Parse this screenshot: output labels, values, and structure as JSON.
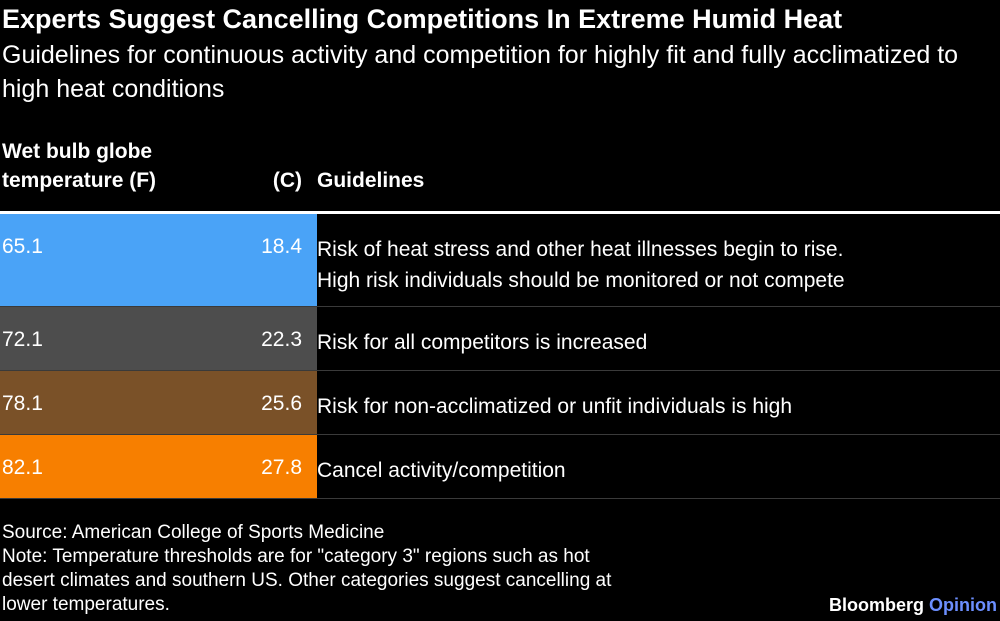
{
  "title": "Experts Suggest Cancelling Competitions In Extreme Humid Heat",
  "subtitle": "Guidelines for continuous activity and competition for highly fit and fully acclimatized to high heat conditions",
  "headers": {
    "fahrenheit_line1": "Wet bulb globe",
    "fahrenheit_line2": "temperature (F)",
    "celsius": "(C)",
    "guidelines": "Guidelines"
  },
  "chart_data": {
    "type": "table",
    "columns": [
      "Wet bulb globe temperature (F)",
      "(C)",
      "Guidelines"
    ],
    "rows": [
      {
        "fahrenheit": "65.1",
        "celsius": "18.4",
        "color": "#4aa3f7",
        "guideline_lines": [
          "Risk of heat stress and other heat illnesses begin to rise.",
          "High risk individuals should be monitored or not compete"
        ]
      },
      {
        "fahrenheit": "72.1",
        "celsius": "22.3",
        "color": "#4d4d4d",
        "guideline_lines": [
          "Risk for all competitors is increased"
        ]
      },
      {
        "fahrenheit": "78.1",
        "celsius": "25.6",
        "color": "#7a5128",
        "guideline_lines": [
          "Risk for non-acclimatized or unfit individuals is high"
        ]
      },
      {
        "fahrenheit": "82.1",
        "celsius": "27.8",
        "color": "#f77f00",
        "guideline_lines": [
          "Cancel activity/competition"
        ]
      }
    ]
  },
  "footer": {
    "source": "Source: American College of Sports Medicine",
    "note_lines": [
      "Note: Temperature thresholds are for \"category 3\" regions such as hot",
      "desert climates and southern US. Other categories suggest cancelling at",
      "lower temperatures."
    ]
  },
  "brand": {
    "name": "Bloomberg",
    "sub": "Opinion"
  }
}
